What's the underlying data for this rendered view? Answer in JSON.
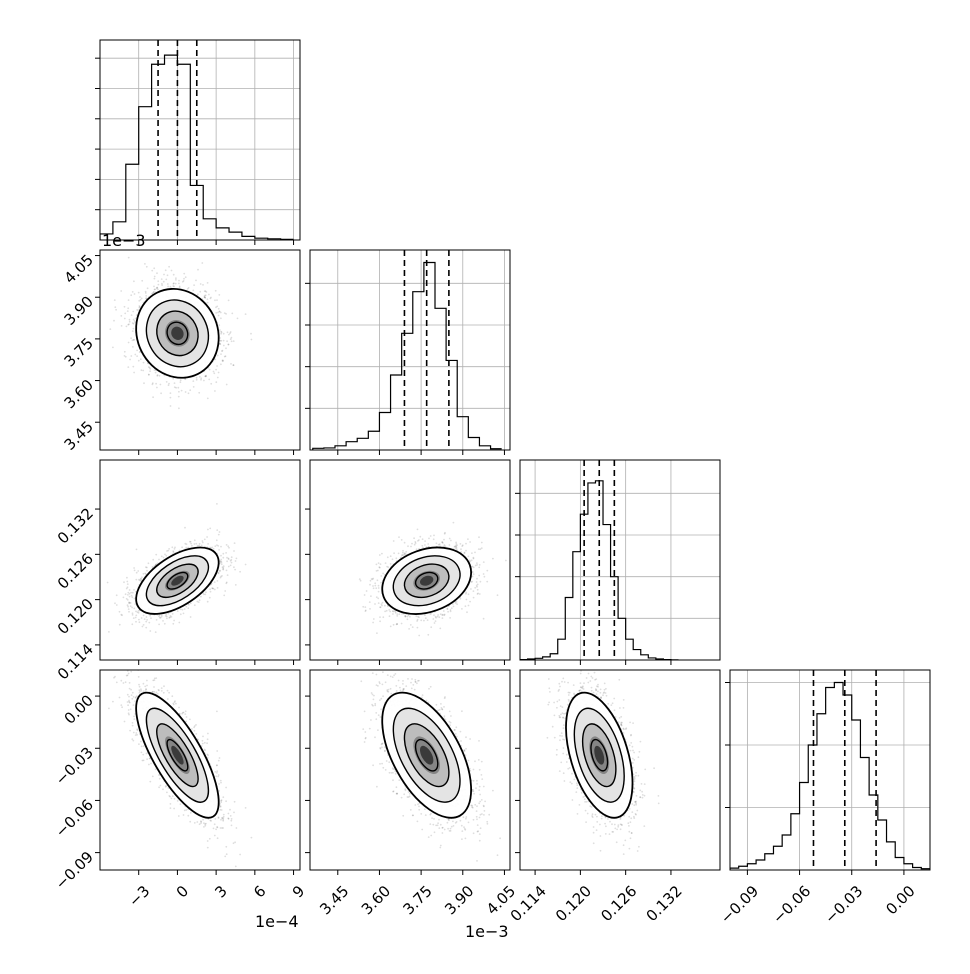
{
  "chart_data": [
    {
      "type": "histogram",
      "panel": "p0-0",
      "xlim": [
        -6,
        9.5
      ],
      "bins_x": [
        -5.5,
        -4.5,
        -3.5,
        -2.5,
        -1.5,
        -0.5,
        0.5,
        1.5,
        2.5,
        3.5,
        4.5,
        5.5,
        6.5,
        7.5,
        8.5
      ],
      "bin_width": 1,
      "counts": [
        10,
        30,
        125,
        220,
        290,
        305,
        290,
        90,
        35,
        20,
        13,
        6,
        3,
        2,
        1
      ],
      "ylim": [
        0,
        330
      ],
      "quantiles": [
        -1.5,
        0.0,
        1.5
      ],
      "y_ticks": [
        50,
        100,
        150,
        200,
        250,
        300
      ]
    },
    {
      "type": "histogram",
      "panel": "p1-1",
      "xlim": [
        3.35,
        4.07
      ],
      "bin_width": 0.04,
      "bins_x": [
        3.38,
        3.42,
        3.46,
        3.5,
        3.54,
        3.58,
        3.62,
        3.66,
        3.7,
        3.74,
        3.78,
        3.82,
        3.86,
        3.9,
        3.94,
        3.98,
        4.02
      ],
      "counts": [
        4,
        5,
        10,
        20,
        28,
        45,
        90,
        180,
        280,
        380,
        450,
        340,
        215,
        80,
        30,
        10,
        3
      ],
      "ylim": [
        0,
        480
      ],
      "quantiles": [
        3.69,
        3.77,
        3.85
      ],
      "y_ticks": [
        100,
        200,
        300,
        400
      ]
    },
    {
      "type": "histogram",
      "panel": "p2-2",
      "xlim": [
        0.112,
        0.1385
      ],
      "bin_width": 0.001,
      "bins_x": [
        0.1125,
        0.1135,
        0.1145,
        0.1155,
        0.1165,
        0.1175,
        0.1185,
        0.1195,
        0.1205,
        0.1215,
        0.1225,
        0.1235,
        0.1245,
        0.1255,
        0.1265,
        0.1275,
        0.1285,
        0.1295,
        0.1305,
        0.1315,
        0.1325
      ],
      "counts": [
        2,
        5,
        8,
        15,
        30,
        100,
        300,
        520,
        700,
        850,
        860,
        650,
        400,
        200,
        100,
        50,
        25,
        10,
        5,
        2,
        1
      ],
      "ylim": [
        0,
        960
      ],
      "quantiles": [
        0.1205,
        0.1225,
        0.1245
      ],
      "y_ticks": [
        200,
        400,
        600,
        800
      ]
    },
    {
      "type": "histogram",
      "panel": "p3-3",
      "xlim": [
        -0.1,
        0.015
      ],
      "bin_width": 0.005,
      "bins_x": [
        -0.0975,
        -0.0925,
        -0.0875,
        -0.0825,
        -0.0775,
        -0.0725,
        -0.0675,
        -0.0625,
        -0.0575,
        -0.0525,
        -0.0475,
        -0.0425,
        -0.0375,
        -0.0325,
        -0.0275,
        -0.0225,
        -0.0175,
        -0.0125,
        -0.0075,
        -0.0025,
        0.0025,
        0.0075,
        0.0125
      ],
      "counts": [
        3,
        6,
        10,
        16,
        26,
        38,
        56,
        90,
        140,
        200,
        250,
        292,
        300,
        280,
        240,
        180,
        120,
        80,
        45,
        20,
        10,
        4,
        2
      ],
      "ylim": [
        0,
        320
      ],
      "quantiles": [
        -0.052,
        -0.034,
        -0.016
      ],
      "y_ticks": [
        100,
        200,
        300
      ]
    },
    {
      "type": "scatter",
      "panel": "p1-0",
      "xlim": [
        -6,
        9.5
      ],
      "ylim": [
        3.35,
        4.07
      ],
      "mean": [
        0.0,
        3.77
      ],
      "std": [
        1.6,
        0.08
      ],
      "rho": -0.1
    },
    {
      "type": "scatter",
      "panel": "p2-0",
      "xlim": [
        -6,
        9.5
      ],
      "ylim": [
        0.112,
        0.1385
      ],
      "mean": [
        0.0,
        0.1225
      ],
      "std": [
        1.6,
        0.0022
      ],
      "rho": 0.55
    },
    {
      "type": "scatter",
      "panel": "p2-1",
      "xlim": [
        3.35,
        4.07
      ],
      "ylim": [
        0.112,
        0.1385
      ],
      "mean": [
        3.77,
        0.1225
      ],
      "std": [
        0.08,
        0.0022
      ],
      "rho": 0.25
    },
    {
      "type": "scatter",
      "panel": "p3-0",
      "xlim": [
        -6,
        9.5
      ],
      "ylim": [
        -0.1,
        0.015
      ],
      "mean": [
        0.0,
        -0.034
      ],
      "std": [
        1.6,
        0.018
      ],
      "rho": -0.75
    },
    {
      "type": "scatter",
      "panel": "p3-1",
      "xlim": [
        3.35,
        4.07
      ],
      "ylim": [
        -0.1,
        0.015
      ],
      "mean": [
        3.77,
        -0.034
      ],
      "std": [
        0.08,
        0.018
      ],
      "rho": -0.55
    },
    {
      "type": "scatter",
      "panel": "p3-2",
      "xlim": [
        0.112,
        0.1385
      ],
      "ylim": [
        -0.1,
        0.015
      ],
      "mean": [
        0.1225,
        -0.034
      ],
      "std": [
        0.0022,
        0.018
      ],
      "rho": -0.45
    }
  ],
  "axes": {
    "x0": {
      "ticks": [
        -3,
        0,
        3,
        6,
        9
      ],
      "labels": [
        "−3",
        "0",
        "3",
        "6",
        "9"
      ],
      "offset": "1e−4"
    },
    "x1": {
      "ticks": [
        3.45,
        3.6,
        3.75,
        3.9,
        4.05
      ],
      "labels": [
        "3.45",
        "3.60",
        "3.75",
        "3.90",
        "4.05"
      ],
      "offset": "1e−3"
    },
    "x2": {
      "ticks": [
        0.114,
        0.12,
        0.126,
        0.132
      ],
      "labels": [
        "0.114",
        "0.120",
        "0.126",
        "0.132"
      ]
    },
    "x3": {
      "ticks": [
        -0.09,
        -0.06,
        -0.03,
        0.0
      ],
      "labels": [
        "−0.09",
        "−0.06",
        "−0.03",
        "0.00"
      ]
    },
    "y1": {
      "ticks": [
        3.45,
        3.6,
        3.75,
        3.9,
        4.05
      ],
      "labels": [
        "3.45",
        "3.60",
        "3.75",
        "3.90",
        "4.05"
      ],
      "offset": "1e−3"
    },
    "y2": {
      "ticks": [
        0.114,
        0.12,
        0.126,
        0.132
      ],
      "labels": [
        "0.114",
        "0.120",
        "0.126",
        "0.132"
      ]
    },
    "y3": {
      "ticks": [
        -0.09,
        -0.06,
        -0.03,
        0.0
      ],
      "labels": [
        "−0.09",
        "−0.06",
        "−0.03",
        "0.00"
      ]
    }
  },
  "style": {
    "line_color": "#000000",
    "grid_color": "#b0b0b0",
    "scatter_color": "#000000"
  }
}
